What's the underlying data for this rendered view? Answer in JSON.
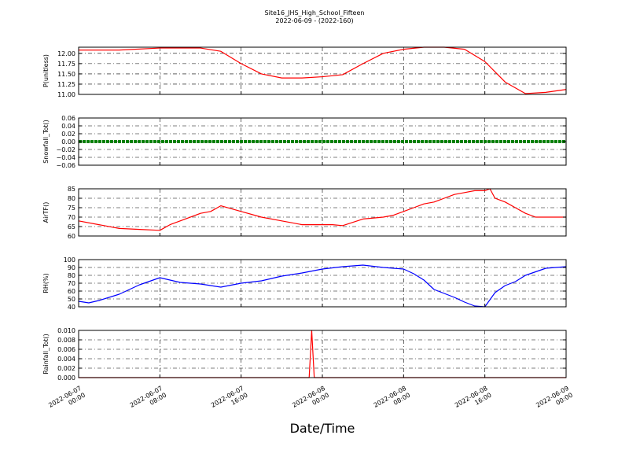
{
  "figure": {
    "title_line1": "Site16_JHS_High_School_Fifteen",
    "title_line2": "2022-06-09 - (2022-160)",
    "xlabel": "Date/Time"
  },
  "chart_data": [
    {
      "type": "line",
      "ylabel": "P(unitless)",
      "color": "#ff0000",
      "ylim": [
        11.0,
        12.15
      ],
      "yticks": [
        11.0,
        11.25,
        11.5,
        11.75,
        12.0
      ],
      "ytick_labels": [
        "11.00",
        "11.25",
        "11.50",
        "11.75",
        "12.00"
      ],
      "x": [
        0,
        4,
        8,
        10,
        12,
        14,
        16,
        18,
        20,
        22,
        24,
        26,
        28,
        30,
        32,
        34,
        36,
        38,
        40,
        42,
        44,
        46,
        48
      ],
      "y": [
        12.08,
        12.08,
        12.13,
        12.13,
        12.13,
        12.05,
        11.75,
        11.5,
        11.4,
        11.4,
        11.43,
        11.48,
        11.75,
        12.0,
        12.1,
        12.15,
        12.15,
        12.1,
        11.8,
        11.3,
        11.02,
        11.05,
        11.12
      ],
      "grid": true
    },
    {
      "type": "line",
      "ylabel": "Snowfall_Tot()",
      "color": "#008000",
      "ylim": [
        -0.06,
        0.06
      ],
      "yticks": [
        -0.06,
        -0.04,
        -0.02,
        0.0,
        0.02,
        0.04,
        0.06
      ],
      "ytick_labels": [
        "−0.06",
        "−0.04",
        "−0.02",
        "0.00",
        "0.02",
        "0.04",
        "0.06"
      ],
      "x": [
        0,
        48
      ],
      "y": [
        0.0,
        0.0
      ],
      "grid": true
    },
    {
      "type": "line",
      "ylabel": "AirTF()",
      "color": "#ff0000",
      "ylim": [
        60,
        85
      ],
      "yticks": [
        60,
        65,
        70,
        75,
        80,
        85
      ],
      "ytick_labels": [
        "60",
        "65",
        "70",
        "75",
        "80",
        "85"
      ],
      "x": [
        0,
        2,
        4,
        6,
        8,
        9,
        10,
        12,
        13,
        14,
        16,
        18,
        20,
        21,
        22,
        24,
        25,
        26,
        28,
        30,
        31,
        32,
        33,
        34,
        35,
        36,
        37,
        38,
        39,
        40,
        40.5,
        41,
        42,
        43,
        44,
        45,
        46,
        48
      ],
      "y": [
        68,
        66,
        64,
        63.5,
        63,
        66,
        68,
        72,
        73,
        76,
        73,
        70,
        68,
        67,
        66,
        66,
        66,
        65.5,
        69,
        70,
        71,
        73,
        75,
        77,
        78,
        80,
        82,
        83,
        84,
        84,
        85,
        80,
        78,
        75,
        72,
        70,
        70,
        70
      ],
      "grid": true
    },
    {
      "type": "line",
      "ylabel": "RH(%)",
      "color": "#0000ff",
      "ylim": [
        40,
        100
      ],
      "yticks": [
        40,
        50,
        60,
        70,
        80,
        90,
        100
      ],
      "ytick_labels": [
        "40",
        "50",
        "60",
        "70",
        "80",
        "90",
        "100"
      ],
      "x": [
        0,
        1,
        2,
        4,
        6,
        8,
        10,
        12,
        14,
        16,
        18,
        20,
        22,
        24,
        26,
        28,
        30,
        31,
        32,
        33,
        34,
        35,
        36,
        37,
        38,
        39,
        40,
        41,
        42,
        43,
        44,
        46,
        48
      ],
      "y": [
        47,
        45,
        48,
        56,
        68,
        77,
        71,
        69,
        65,
        70,
        73,
        79,
        83,
        88,
        91,
        93,
        90,
        89,
        88,
        82,
        74,
        62,
        57,
        52,
        46,
        41,
        40,
        58,
        67,
        72,
        80,
        89,
        91
      ],
      "grid": true
    },
    {
      "type": "line",
      "ylabel": "Rainfall_Tot()",
      "color": "#ff0000",
      "ylim": [
        0.0,
        0.01
      ],
      "yticks": [
        0.0,
        0.002,
        0.004,
        0.006,
        0.008,
        0.01
      ],
      "ytick_labels": [
        "0.000",
        "0.002",
        "0.004",
        "0.006",
        "0.008",
        "0.010"
      ],
      "x": [
        0,
        22.7,
        22.95,
        23.2,
        48
      ],
      "y": [
        0.0,
        0.0,
        0.01,
        0.0,
        0.0
      ],
      "grid": true
    }
  ],
  "xaxis": {
    "range_hours": [
      0,
      48
    ],
    "tick_hours": [
      0,
      8,
      16,
      24,
      32,
      40,
      48
    ],
    "tick_labels": [
      [
        "2022-06-07",
        "00:00"
      ],
      [
        "2022-06-07",
        "08:00"
      ],
      [
        "2022-06-07",
        "16:00"
      ],
      [
        "2022-06-08",
        "00:00"
      ],
      [
        "2022-06-08",
        "08:00"
      ],
      [
        "2022-06-08",
        "16:00"
      ],
      [
        "2022-06-09",
        "00:00"
      ]
    ]
  }
}
